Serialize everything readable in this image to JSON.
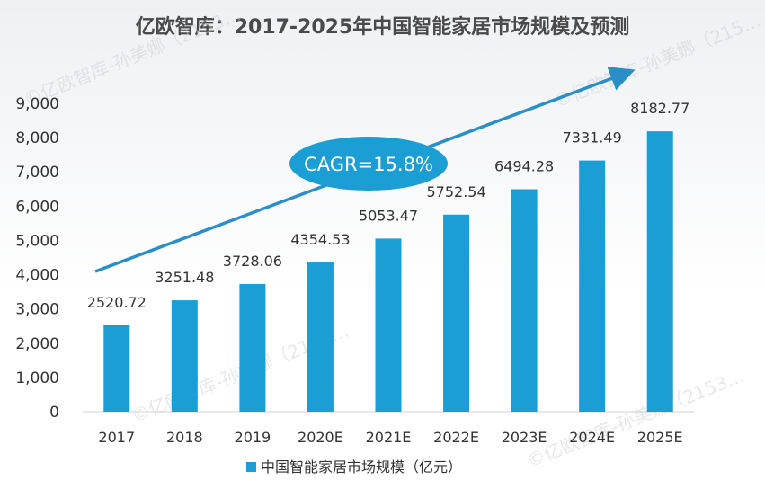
{
  "chart_data": {
    "type": "bar",
    "title": "亿欧智库：2017-2025年中国智能家居市场规模及预测",
    "categories": [
      "2017",
      "2018",
      "2019",
      "2020E",
      "2021E",
      "2022E",
      "2023E",
      "2024E",
      "2025E"
    ],
    "series": [
      {
        "name": "中国智能家居市场规模（亿元）",
        "values": [
          2520.72,
          3251.48,
          3728.06,
          4354.53,
          5053.47,
          5752.54,
          6494.28,
          7331.49,
          8182.77
        ],
        "labels": [
          "2520.72",
          "3251.48",
          "3728.06",
          "4354.53",
          "5053.47",
          "5752.54",
          "6494.28",
          "7331.49",
          "8182.77"
        ]
      }
    ],
    "ylim": [
      0,
      9000
    ],
    "yticks": [
      0,
      1000,
      2000,
      3000,
      4000,
      5000,
      6000,
      7000,
      8000,
      9000
    ],
    "ytick_labels": [
      "0",
      "1,000",
      "2,000",
      "3,000",
      "4,000",
      "5,000",
      "6,000",
      "7,000",
      "8,000",
      "9,000"
    ],
    "grid": false,
    "legend_position": "bottom-center",
    "annotation": "CAGR=15.8%",
    "colors": {
      "bar": "#1b9ed4",
      "arrow": "#2a8fc7",
      "ellipse": "#1b9ed4"
    }
  },
  "watermarks": [
    "©亿欧智库-孙美娜（2153…",
    "©亿欧智库-孙美娜（215…",
    "©亿欧智库-孙美娜（2153…",
    "©亿欧智库-孙美娜（2153…"
  ]
}
